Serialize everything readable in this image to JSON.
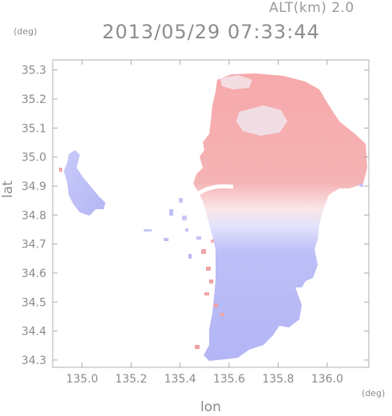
{
  "header": {
    "altitude_label": "ALT(km) 2.0",
    "timestamp": "2013/05/29 07:33:44"
  },
  "axes": {
    "x_unit": "(deg)",
    "y_unit": "(deg)",
    "x_label": "lon",
    "y_label": "lat",
    "x_range": [
      134.88,
      136.17
    ],
    "y_range": [
      34.275,
      35.335
    ],
    "x_ticks": [
      "135.0",
      "135.2",
      "135.4",
      "135.6",
      "135.8",
      "136.0"
    ],
    "x_tick_values": [
      135.0,
      135.2,
      135.4,
      135.6,
      135.8,
      136.0
    ],
    "y_ticks": [
      "35.3",
      "35.2",
      "35.1",
      "35.0",
      "34.9",
      "34.8",
      "34.7",
      "34.6",
      "34.5",
      "34.4",
      "34.3"
    ],
    "y_tick_values": [
      35.3,
      35.2,
      35.1,
      35.0,
      34.9,
      34.8,
      34.7,
      34.6,
      34.5,
      34.4,
      34.3
    ]
  },
  "colors": {
    "approaching": "#b7b9f6",
    "receding": "#f6a9ab",
    "neutral": "#fbeff0",
    "axis": "#9a9a9a",
    "text": "#8a8a8a"
  }
}
